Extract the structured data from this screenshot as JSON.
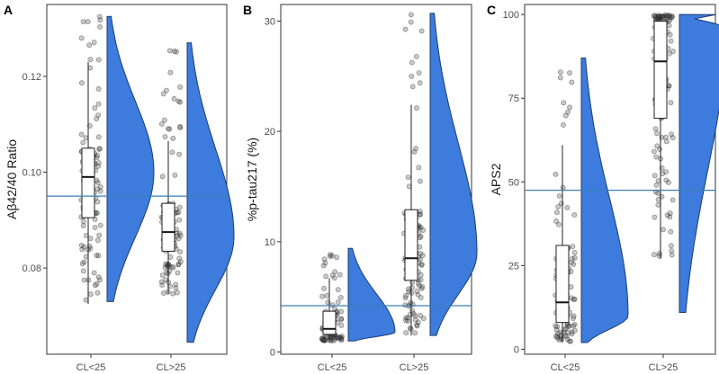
{
  "chart_data": [
    {
      "panel": "A",
      "type": "violin-box",
      "ylabel": "Aβ42/40 Ratio",
      "categories": [
        "CL<25",
        "CL>25"
      ],
      "yticks": [
        0.08,
        0.1,
        0.12
      ],
      "ytick_labels": [
        "0.08",
        "0.10",
        "0.12"
      ],
      "ylim": [
        0.062,
        0.135
      ],
      "cutoff": 0.095,
      "groups": [
        {
          "name": "CL<25",
          "min": 0.0725,
          "q1": 0.0905,
          "median": 0.099,
          "q3": 0.105,
          "max": 0.123,
          "violin_max": 0.1325,
          "violin_min": 0.073,
          "mode": 0.1,
          "n_points": 110
        },
        {
          "name": "CL>25",
          "min": 0.0745,
          "q1": 0.0835,
          "median": 0.0875,
          "q3": 0.0935,
          "max": 0.1065,
          "violin_max": 0.127,
          "violin_min": 0.0645,
          "mode": 0.0865,
          "n_points": 110
        }
      ]
    },
    {
      "panel": "B",
      "type": "violin-box",
      "ylabel": "%p-tau217 (%)",
      "categories": [
        "CL<25",
        "CL>25"
      ],
      "yticks": [
        0,
        10,
        20,
        30
      ],
      "ytick_labels": [
        "0",
        "10",
        "20",
        "30"
      ],
      "ylim": [
        -0.2,
        31.5
      ],
      "cutoff": 4.2,
      "groups": [
        {
          "name": "CL<25",
          "min": 1.0,
          "q1": 1.6,
          "median": 2.1,
          "q3": 3.7,
          "max": 6.7,
          "violin_max": 9.4,
          "violin_min": 1.0,
          "mode": 1.8,
          "n_points": 100
        },
        {
          "name": "CL>25",
          "min": 1.5,
          "q1": 6.5,
          "median": 8.5,
          "q3": 12.9,
          "max": 22.4,
          "violin_max": 30.7,
          "violin_min": 1.5,
          "mode": 9.0,
          "n_points": 120
        }
      ]
    },
    {
      "panel": "C",
      "type": "violin-box",
      "ylabel": "APS2",
      "categories": [
        "CL<25",
        "CL>25"
      ],
      "yticks": [
        0,
        25,
        50,
        75,
        100
      ],
      "ytick_labels": [
        "0",
        "25",
        "50",
        "75",
        "100"
      ],
      "ylim": [
        -1.5,
        103
      ],
      "cutoff": 47.5,
      "groups": [
        {
          "name": "CL<25",
          "min": 2,
          "q1": 8,
          "median": 14,
          "q3": 31,
          "max": 61,
          "violin_max": 87,
          "violin_min": 2,
          "mode": 10,
          "n_points": 100
        },
        {
          "name": "CL>25",
          "min": 27,
          "q1": 69,
          "median": 86,
          "q3": 98,
          "max": 100,
          "violin_max": 100,
          "violin_min": 11,
          "mode": 96,
          "n_points": 120
        }
      ]
    }
  ]
}
